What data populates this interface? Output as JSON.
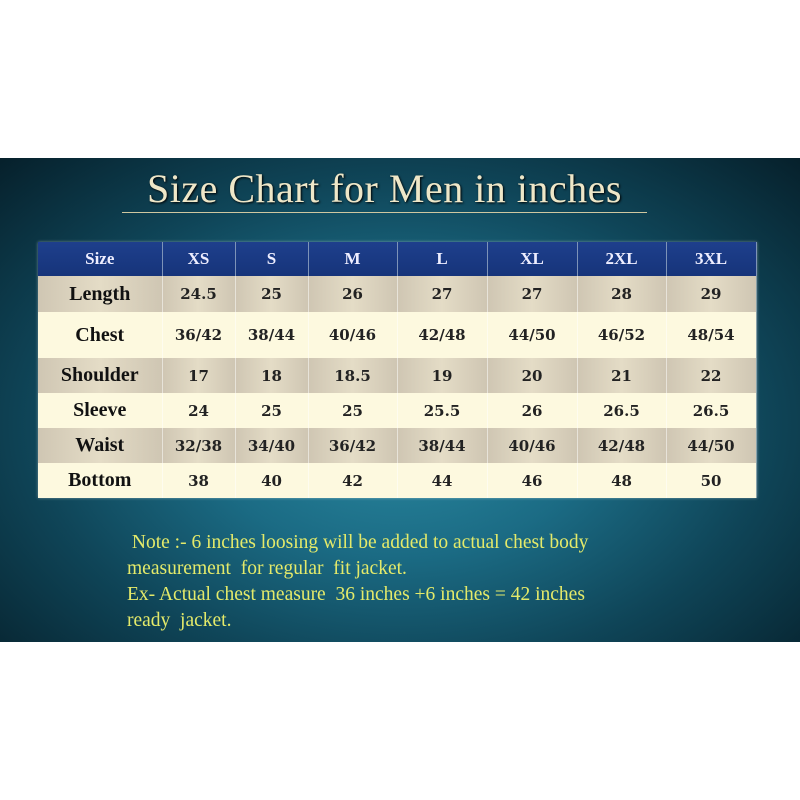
{
  "title": "Size Chart for Men in inches",
  "table": {
    "headers": [
      "Size",
      "XS",
      "S",
      "M",
      "L",
      "XL",
      "2XL",
      "3XL"
    ],
    "rows": [
      {
        "label": "Length",
        "values": [
          "24.5",
          "25",
          "26",
          "27",
          "27",
          "28",
          "29"
        ]
      },
      {
        "label": "Chest",
        "values": [
          "36/42",
          "38/44",
          "40/46",
          "42/48",
          "44/50",
          "46/52",
          "48/54"
        ]
      },
      {
        "label": "Shoulder",
        "values": [
          "17",
          "18",
          "18.5",
          "19",
          "20",
          "21",
          "22"
        ]
      },
      {
        "label": "Sleeve",
        "values": [
          "24",
          "25",
          "25",
          "25.5",
          "26",
          "26.5",
          "26.5"
        ]
      },
      {
        "label": "Waist",
        "values": [
          "32/38",
          "34/40",
          "36/42",
          "38/44",
          "40/46",
          "42/48",
          "44/50"
        ]
      },
      {
        "label": "Bottom",
        "values": [
          "38",
          "40",
          "42",
          "44",
          "46",
          "48",
          "50"
        ]
      }
    ]
  },
  "note": {
    "lines": [
      " Note :- 6 inches loosing will be added to actual chest body",
      "measurement  for regular  fit jacket.",
      "Ex- Actual chest measure  36 inches +6 inches = 42 inches",
      "ready  jacket."
    ]
  },
  "colors": {
    "header_bg": "#1e3f8c",
    "note_text": "#e4ea6a",
    "title_text": "#eee7c8"
  }
}
